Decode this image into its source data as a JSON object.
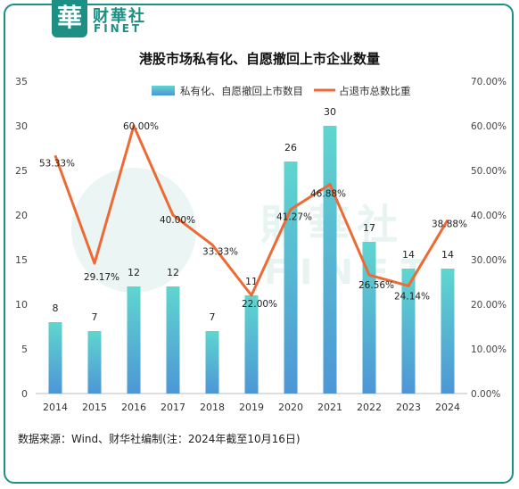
{
  "brand": {
    "badge": "華",
    "name_cn": "财華社",
    "name_en": "FINET",
    "watermark_cn": "財華社",
    "watermark_en": "FINET"
  },
  "chart_data": {
    "type": "bar+line",
    "title": "港股市场私有化、自愿撤回上市企业数量",
    "categories": [
      "2014",
      "2015",
      "2016",
      "2017",
      "2018",
      "2019",
      "2020",
      "2021",
      "2022",
      "2023",
      "2024"
    ],
    "series": [
      {
        "name": "私有化、自愿撤回上市数目",
        "type": "bar",
        "axis": "left",
        "values": [
          8,
          7,
          12,
          12,
          7,
          11,
          26,
          30,
          17,
          14,
          14
        ],
        "labels": [
          "8",
          "7",
          "12",
          "12",
          "7",
          "11",
          "26",
          "30",
          "17",
          "14",
          "14"
        ]
      },
      {
        "name": "占退市总数比重",
        "type": "line",
        "axis": "right",
        "values": [
          53.33,
          29.17,
          60.0,
          40.0,
          33.33,
          22.0,
          41.27,
          46.88,
          26.56,
          24.14,
          38.88
        ],
        "labels": [
          "53.33%",
          "29.17%",
          "60.00%",
          "40.00%",
          "33.33%",
          "22.00%",
          "41.27%",
          "46.88%",
          "26.56%",
          "24.14%",
          "38.88%"
        ]
      }
    ],
    "y_left": {
      "min": 0,
      "max": 35,
      "ticks": [
        "0",
        "5",
        "10",
        "15",
        "20",
        "25",
        "30",
        "35"
      ]
    },
    "y_right": {
      "min": 0,
      "max": 70,
      "ticks": [
        "0.00%",
        "10.00%",
        "20.00%",
        "30.00%",
        "40.00%",
        "50.00%",
        "60.00%",
        "70.00%"
      ]
    },
    "legend_position": "top",
    "colors": {
      "bar_top": "#5fd6cf",
      "bar_bottom": "#4d96d6",
      "line": "#ed6a35",
      "axis": "#999999"
    }
  },
  "footnote": "数据来源：Wind、财华社编制(注：2024年截至10月16日)"
}
